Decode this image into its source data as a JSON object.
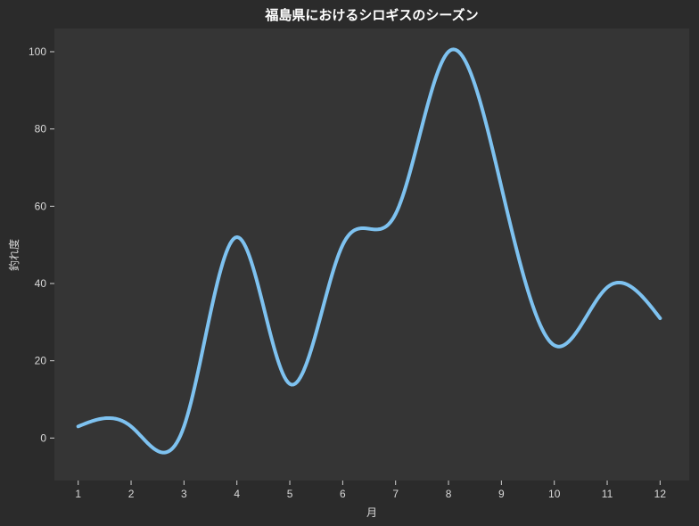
{
  "chart_data": {
    "type": "line",
    "title": "福島県におけるシロギスのシーズン",
    "xlabel": "月",
    "ylabel": "釣れ度",
    "x": [
      1,
      2,
      3,
      4,
      5,
      6,
      7,
      8,
      9,
      10,
      11,
      12
    ],
    "y": [
      3,
      3,
      3,
      52,
      14,
      50,
      58,
      100,
      65,
      24,
      39,
      31
    ],
    "xticks": [
      "1",
      "2",
      "3",
      "4",
      "5",
      "6",
      "7",
      "8",
      "9",
      "10",
      "11",
      "12"
    ],
    "yticks": [
      "0",
      "20",
      "40",
      "60",
      "80",
      "100"
    ],
    "xlim": [
      0.55,
      12.55
    ],
    "ylim": [
      -11,
      106
    ],
    "grid": false,
    "colors": {
      "background": "#2b2b2b",
      "plot_background": "#353535",
      "line": "#7ec2f0",
      "text": "#d9d9d9",
      "title": "#ffffff"
    }
  }
}
